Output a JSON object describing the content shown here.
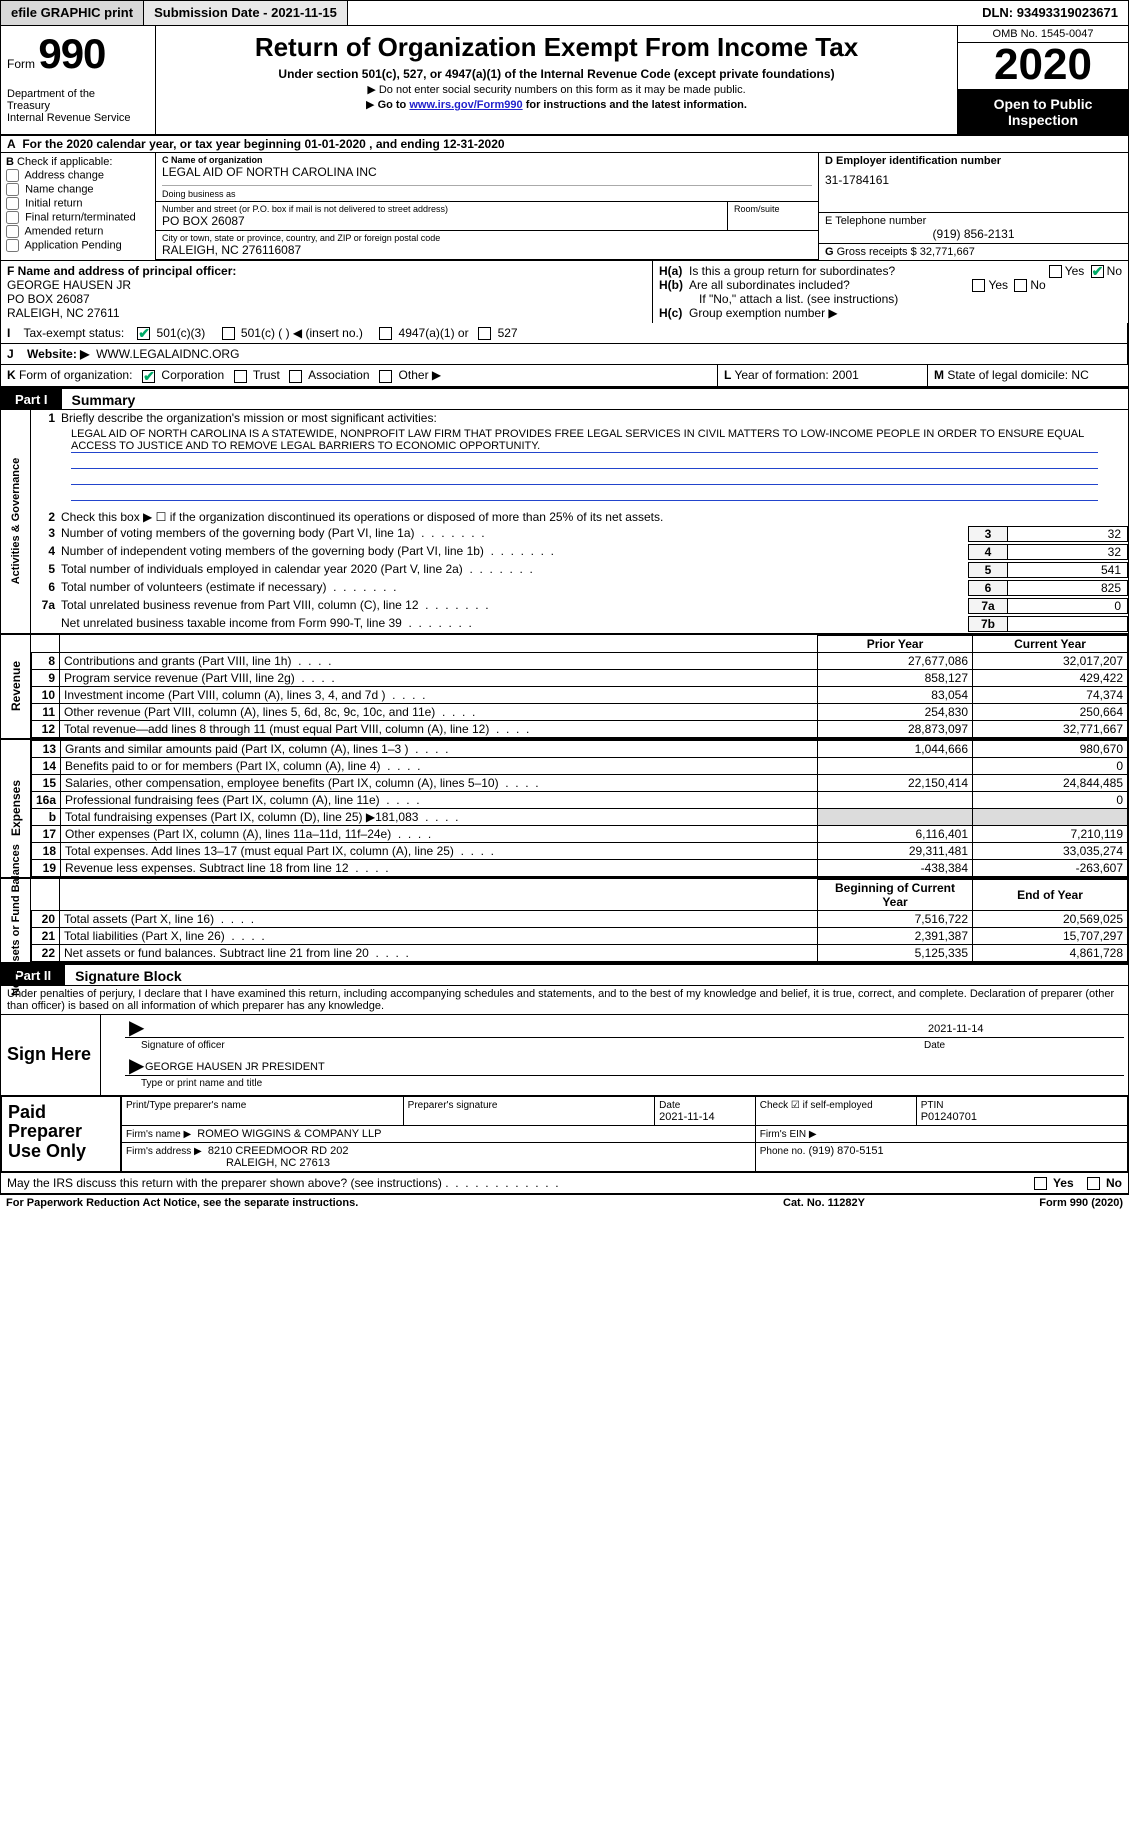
{
  "topbar": {
    "efile": "efile GRAPHIC print",
    "submission": "Submission Date - 2021-11-15",
    "dln_label": "DLN:",
    "dln": "93493319023671"
  },
  "header": {
    "form_prefix": "Form",
    "form_number": "990",
    "dept": "Department of the Treasury\nInternal Revenue Service",
    "title": "Return of Organization Exempt From Income Tax",
    "subtitle": "Under section 501(c), 527, or 4947(a)(1) of the Internal Revenue Code (except private foundations)",
    "ptr1": "Do not enter social security numbers on this form as it may be made public.",
    "ptr2_pre": "Go to ",
    "ptr2_link": "www.irs.gov/Form990",
    "ptr2_post": " for instructions and the latest information.",
    "omb": "OMB No. 1545-0047",
    "year": "2020",
    "inspect": "Open to Public Inspection"
  },
  "cal": {
    "text": "For the 2020 calendar year, or tax year beginning 01-01-2020    , and ending 12-31-2020",
    "A": "A"
  },
  "B": {
    "label": "Check if applicable:",
    "opts": [
      "Address change",
      "Name change",
      "Initial return",
      "Final return/terminated",
      "Amended return",
      "Application Pending"
    ]
  },
  "C": {
    "name_label": "C Name of organization",
    "name": "LEGAL AID OF NORTH CAROLINA INC",
    "dba_label": "Doing business as",
    "addr_label": "Number and street (or P.O. box if mail is not delivered to street address)",
    "room_label": "Room/suite",
    "addr": "PO BOX 26087",
    "city_label": "City or town, state or province, country, and ZIP or foreign postal code",
    "city": "RALEIGH, NC  276116087"
  },
  "D": {
    "label": "D Employer identification number",
    "val": "31-1784161"
  },
  "E": {
    "label": "E Telephone number",
    "val": "(919) 856-2131"
  },
  "G": {
    "label": "G",
    "text": "Gross receipts $",
    "val": "32,771,667"
  },
  "F": {
    "label": "F  Name and address of principal officer:",
    "name": "GEORGE HAUSEN JR",
    "addr1": "PO BOX 26087",
    "addr2": "RALEIGH, NC  27611"
  },
  "H": {
    "a": "Is this a group return for subordinates?",
    "b": "Are all subordinates included?",
    "b_note": "If \"No,\" attach a list. (see instructions)",
    "c": "Group exemption number ▶",
    "yes": "Yes",
    "no": "No"
  },
  "I": {
    "label": "Tax-exempt status:",
    "c3": "501(c)(3)",
    "c": "501(c) (  ) ◀ (insert no.)",
    "a1": "4947(a)(1) or",
    "s527": "527"
  },
  "J": {
    "label": "Website: ▶",
    "val": "WWW.LEGALAIDNC.ORG"
  },
  "K": {
    "label": "Form of organization:",
    "corp": "Corporation",
    "trust": "Trust",
    "assoc": "Association",
    "other": "Other ▶"
  },
  "L": {
    "label": "L",
    "text": "Year of formation:",
    "val": "2001"
  },
  "M": {
    "label": "M",
    "text": "State of legal domicile:",
    "val": "NC"
  },
  "part1": {
    "tag": "Part I",
    "title": "Summary",
    "l1": "Briefly describe the organization's mission or most significant activities:",
    "mission": "LEGAL AID OF NORTH CAROLINA IS A STATEWIDE, NONPROFIT LAW FIRM THAT PROVIDES FREE LEGAL SERVICES IN CIVIL MATTERS TO LOW-INCOME PEOPLE IN ORDER TO ENSURE EQUAL ACCESS TO JUSTICE AND TO REMOVE LEGAL BARRIERS TO ECONOMIC OPPORTUNITY.",
    "l2": "Check this box ▶ ☐  if the organization discontinued its operations or disposed of more than 25% of its net assets.",
    "lines_gov": [
      {
        "n": "3",
        "t": "Number of voting members of the governing body (Part VI, line 1a)",
        "box": "3",
        "v": "32"
      },
      {
        "n": "4",
        "t": "Number of independent voting members of the governing body (Part VI, line 1b)",
        "box": "4",
        "v": "32"
      },
      {
        "n": "5",
        "t": "Total number of individuals employed in calendar year 2020 (Part V, line 2a)",
        "box": "5",
        "v": "541"
      },
      {
        "n": "6",
        "t": "Total number of volunteers (estimate if necessary)",
        "box": "6",
        "v": "825"
      },
      {
        "n": "7a",
        "t": "Total unrelated business revenue from Part VIII, column (C), line 12",
        "box": "7a",
        "v": "0"
      },
      {
        "n": "",
        "t": "Net unrelated business taxable income from Form 990-T, line 39",
        "box": "7b",
        "v": ""
      }
    ],
    "col_prior": "Prior Year",
    "col_curr": "Current Year",
    "revenue": [
      {
        "n": "8",
        "d": "Contributions and grants (Part VIII, line 1h)",
        "p": "27,677,086",
        "c": "32,017,207"
      },
      {
        "n": "9",
        "d": "Program service revenue (Part VIII, line 2g)",
        "p": "858,127",
        "c": "429,422"
      },
      {
        "n": "10",
        "d": "Investment income (Part VIII, column (A), lines 3, 4, and 7d )",
        "p": "83,054",
        "c": "74,374"
      },
      {
        "n": "11",
        "d": "Other revenue (Part VIII, column (A), lines 5, 6d, 8c, 9c, 10c, and 11e)",
        "p": "254,830",
        "c": "250,664"
      },
      {
        "n": "12",
        "d": "Total revenue—add lines 8 through 11 (must equal Part VIII, column (A), line 12)",
        "p": "28,873,097",
        "c": "32,771,667"
      }
    ],
    "expenses": [
      {
        "n": "13",
        "d": "Grants and similar amounts paid (Part IX, column (A), lines 1–3 )",
        "p": "1,044,666",
        "c": "980,670"
      },
      {
        "n": "14",
        "d": "Benefits paid to or for members (Part IX, column (A), line 4)",
        "p": "",
        "c": "0"
      },
      {
        "n": "15",
        "d": "Salaries, other compensation, employee benefits (Part IX, column (A), lines 5–10)",
        "p": "22,150,414",
        "c": "24,844,485"
      },
      {
        "n": "16a",
        "d": "Professional fundraising fees (Part IX, column (A), line 11e)",
        "p": "",
        "c": "0"
      },
      {
        "n": "b",
        "d": "Total fundraising expenses (Part IX, column (D), line 25) ▶181,083",
        "p": "SHADE",
        "c": "SHADE"
      },
      {
        "n": "17",
        "d": "Other expenses (Part IX, column (A), lines 11a–11d, 11f–24e)",
        "p": "6,116,401",
        "c": "7,210,119"
      },
      {
        "n": "18",
        "d": "Total expenses. Add lines 13–17 (must equal Part IX, column (A), line 25)",
        "p": "29,311,481",
        "c": "33,035,274"
      },
      {
        "n": "19",
        "d": "Revenue less expenses. Subtract line 18 from line 12",
        "p": "-438,384",
        "c": "-263,607"
      }
    ],
    "col_begin": "Beginning of Current Year",
    "col_end": "End of Year",
    "netassets": [
      {
        "n": "20",
        "d": "Total assets (Part X, line 16)",
        "p": "7,516,722",
        "c": "20,569,025"
      },
      {
        "n": "21",
        "d": "Total liabilities (Part X, line 26)",
        "p": "2,391,387",
        "c": "15,707,297"
      },
      {
        "n": "22",
        "d": "Net assets or fund balances. Subtract line 21 from line 20",
        "p": "5,125,335",
        "c": "4,861,728"
      }
    ],
    "side_gov": "Activities & Governance",
    "side_rev": "Revenue",
    "side_exp": "Expenses",
    "side_net": "Net Assets or Fund Balances"
  },
  "part2": {
    "tag": "Part II",
    "title": "Signature Block"
  },
  "sig": {
    "decl": "Under penalties of perjury, I declare that I have examined this return, including accompanying schedules and statements, and to the best of my knowledge and belief, it is true, correct, and complete. Declaration of preparer (other than officer) is based on all information of which preparer has any knowledge.",
    "sign_here": "Sign Here",
    "sig_of_officer": "Signature of officer",
    "date_label": "Date",
    "date": "2021-11-14",
    "officer": "GEORGE HAUSEN JR  PRESIDENT",
    "type_name": "Type or print name and title"
  },
  "preparer": {
    "label": "Paid Preparer Use Only",
    "h_name": "Print/Type preparer's name",
    "h_sig": "Preparer's signature",
    "h_date": "Date",
    "date": "2021-11-14",
    "h_check": "Check ☑ if self-employed",
    "h_ptin": "PTIN",
    "ptin": "P01240701",
    "firm_name_lab": "Firm's name    ▶",
    "firm_name": "ROMEO WIGGINS & COMPANY LLP",
    "firm_ein_lab": "Firm's EIN ▶",
    "firm_addr_lab": "Firm's address ▶",
    "firm_addr1": "8210 CREEDMOOR RD 202",
    "firm_addr2": "RALEIGH, NC  27613",
    "phone_lab": "Phone no.",
    "phone": "(919) 870-5151"
  },
  "discuss": {
    "text": "May the IRS discuss this return with the preparer shown above? (see instructions)",
    "yes": "Yes",
    "no": "No"
  },
  "footer": {
    "left": "For Paperwork Reduction Act Notice, see the separate instructions.",
    "cat": "Cat. No. 11282Y",
    "right": "Form 990 (2020)"
  }
}
